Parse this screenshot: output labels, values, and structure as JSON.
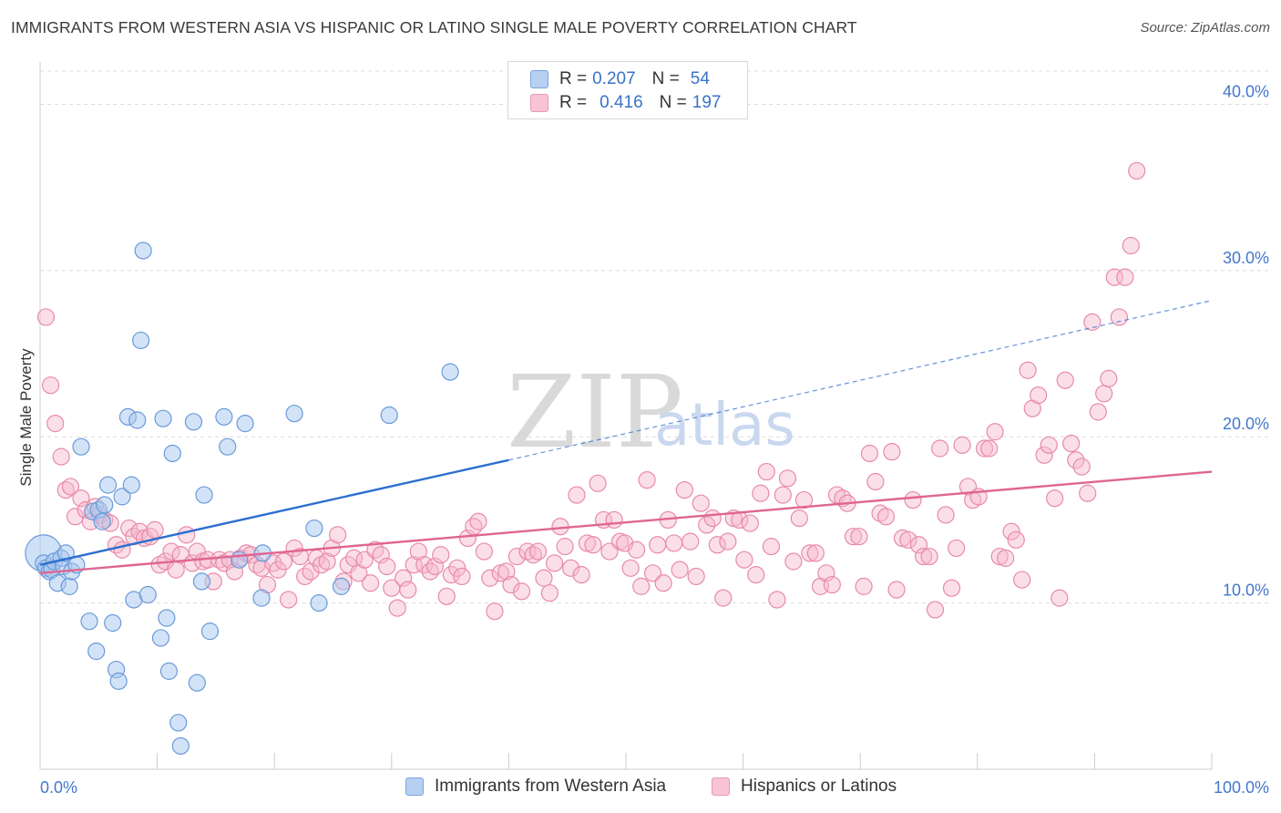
{
  "header": {
    "title": "IMMIGRANTS FROM WESTERN ASIA VS HISPANIC OR LATINO SINGLE MALE POVERTY CORRELATION CHART",
    "source": "Source: ZipAtlas.com"
  },
  "watermark": {
    "zip": "ZIP",
    "atlas": "atlas"
  },
  "legend": {
    "series1": {
      "r_label": "R =",
      "r_value": "0.207",
      "n_label": "N =",
      "n_value": "54"
    },
    "series2": {
      "r_label": "R =",
      "r_value": "0.416",
      "n_label": "N =",
      "n_value": "197"
    }
  },
  "colors": {
    "blue_fill": "#a8c8f0",
    "blue_stroke": "#6a9ad8",
    "blue_line": "#2d6fcf",
    "pink_fill": "#f6b8cc",
    "pink_stroke": "#e88aa8",
    "pink_line": "#e06592",
    "grid": "#dddddd",
    "tick_text": "#4477cc"
  },
  "chart_data": {
    "type": "scatter",
    "title": "IMMIGRANTS FROM WESTERN ASIA VS HISPANIC OR LATINO SINGLE MALE POVERTY CORRELATION CHART",
    "xlabel": "",
    "ylabel": "Single Male Poverty",
    "xlim": [
      0,
      100
    ],
    "ylim": [
      0,
      40
    ],
    "x_tick_labels": [
      "0.0%",
      "100.0%"
    ],
    "y_ticks": [
      10,
      20,
      30,
      40
    ],
    "y_tick_labels": [
      "10.0%",
      "20.0%",
      "30.0%",
      "40.0%"
    ],
    "grid": true,
    "legend_position": "top-center",
    "series": [
      {
        "name": "Immigrants from Western Asia",
        "r": 0.207,
        "n": 54,
        "trend": {
          "x0": 0,
          "y0": 12.3,
          "x1": 40,
          "y1": 18.6,
          "dashed_to": {
            "x": 100,
            "y": 28.2
          }
        },
        "points": [
          [
            0.3,
            12.4
          ],
          [
            0.5,
            12.1
          ],
          [
            0.8,
            11.9
          ],
          [
            1.0,
            12.0
          ],
          [
            1.2,
            12.5
          ],
          [
            1.5,
            11.2
          ],
          [
            1.8,
            12.7
          ],
          [
            2.0,
            12.2
          ],
          [
            2.2,
            13.0
          ],
          [
            2.5,
            11.0
          ],
          [
            2.7,
            11.9
          ],
          [
            3.1,
            12.3
          ],
          [
            3.5,
            19.4
          ],
          [
            4.2,
            8.9
          ],
          [
            4.5,
            15.5
          ],
          [
            4.8,
            7.1
          ],
          [
            5.0,
            15.6
          ],
          [
            5.3,
            14.9
          ],
          [
            5.5,
            15.9
          ],
          [
            5.8,
            17.1
          ],
          [
            6.2,
            8.8
          ],
          [
            6.5,
            6.0
          ],
          [
            6.7,
            5.3
          ],
          [
            7.0,
            16.4
          ],
          [
            7.5,
            21.2
          ],
          [
            7.8,
            17.1
          ],
          [
            8.0,
            10.2
          ],
          [
            8.3,
            21.0
          ],
          [
            8.6,
            25.8
          ],
          [
            8.8,
            31.2
          ],
          [
            9.2,
            10.5
          ],
          [
            10.3,
            7.9
          ],
          [
            10.5,
            21.1
          ],
          [
            10.8,
            9.1
          ],
          [
            11.0,
            5.9
          ],
          [
            11.3,
            19.0
          ],
          [
            11.8,
            2.8
          ],
          [
            12.0,
            1.4
          ],
          [
            13.1,
            20.9
          ],
          [
            13.4,
            5.2
          ],
          [
            13.8,
            11.3
          ],
          [
            14.0,
            16.5
          ],
          [
            14.5,
            8.3
          ],
          [
            15.7,
            21.2
          ],
          [
            16.0,
            19.4
          ],
          [
            17.0,
            12.6
          ],
          [
            17.5,
            20.8
          ],
          [
            18.9,
            10.3
          ],
          [
            19.0,
            13.0
          ],
          [
            21.7,
            21.4
          ],
          [
            23.4,
            14.5
          ],
          [
            23.8,
            10.0
          ],
          [
            25.7,
            11.0
          ],
          [
            29.8,
            21.3
          ],
          [
            35.0,
            23.9
          ]
        ]
      },
      {
        "name": "Hispanics or Latinos",
        "r": 0.416,
        "n": 197,
        "trend": {
          "x0": 0,
          "y0": 11.8,
          "x1": 100,
          "y1": 17.9
        },
        "points": [
          [
            0.5,
            27.2
          ],
          [
            0.9,
            23.1
          ],
          [
            1.3,
            20.8
          ],
          [
            1.8,
            18.8
          ],
          [
            2.2,
            16.8
          ],
          [
            2.6,
            17.0
          ],
          [
            3.0,
            15.2
          ],
          [
            3.5,
            16.3
          ],
          [
            3.9,
            15.6
          ],
          [
            4.3,
            14.9
          ],
          [
            4.7,
            15.8
          ],
          [
            5.1,
            15.3
          ],
          [
            5.5,
            15.0
          ],
          [
            6.0,
            14.8
          ],
          [
            6.5,
            13.5
          ],
          [
            7.0,
            13.2
          ],
          [
            7.6,
            14.5
          ],
          [
            8.0,
            14.0
          ],
          [
            8.5,
            14.3
          ],
          [
            8.9,
            13.9
          ],
          [
            9.4,
            14.0
          ],
          [
            9.8,
            14.4
          ],
          [
            10.2,
            12.3
          ],
          [
            10.7,
            12.5
          ],
          [
            11.2,
            13.1
          ],
          [
            11.6,
            12.0
          ],
          [
            12.0,
            12.9
          ],
          [
            12.5,
            14.1
          ],
          [
            13.0,
            12.4
          ],
          [
            13.4,
            13.1
          ],
          [
            13.9,
            12.5
          ],
          [
            14.3,
            12.6
          ],
          [
            14.8,
            11.3
          ],
          [
            15.3,
            12.6
          ],
          [
            15.7,
            12.4
          ],
          [
            16.2,
            12.6
          ],
          [
            16.6,
            11.9
          ],
          [
            17.1,
            12.7
          ],
          [
            17.6,
            13.0
          ],
          [
            18.0,
            12.9
          ],
          [
            18.5,
            12.3
          ],
          [
            18.9,
            12.1
          ],
          [
            19.4,
            11.1
          ],
          [
            19.9,
            12.4
          ],
          [
            20.3,
            12.0
          ],
          [
            20.8,
            12.5
          ],
          [
            21.2,
            10.2
          ],
          [
            21.7,
            13.3
          ],
          [
            22.2,
            12.8
          ],
          [
            22.6,
            11.6
          ],
          [
            23.1,
            11.9
          ],
          [
            23.6,
            12.7
          ],
          [
            24.0,
            12.3
          ],
          [
            24.5,
            12.5
          ],
          [
            24.9,
            13.3
          ],
          [
            25.4,
            14.1
          ],
          [
            25.9,
            11.3
          ],
          [
            26.3,
            12.3
          ],
          [
            26.8,
            12.7
          ],
          [
            27.2,
            11.8
          ],
          [
            27.7,
            12.6
          ],
          [
            28.2,
            11.2
          ],
          [
            28.6,
            13.2
          ],
          [
            29.1,
            12.9
          ],
          [
            29.6,
            12.2
          ],
          [
            30.0,
            10.9
          ],
          [
            30.5,
            9.7
          ],
          [
            31.0,
            11.5
          ],
          [
            31.4,
            10.8
          ],
          [
            31.9,
            12.3
          ],
          [
            32.3,
            13.1
          ],
          [
            32.8,
            12.3
          ],
          [
            33.3,
            11.9
          ],
          [
            33.7,
            12.2
          ],
          [
            34.2,
            12.9
          ],
          [
            34.7,
            10.4
          ],
          [
            35.1,
            11.7
          ],
          [
            35.6,
            12.1
          ],
          [
            36.0,
            11.6
          ],
          [
            36.5,
            13.9
          ],
          [
            37.0,
            14.6
          ],
          [
            37.4,
            14.9
          ],
          [
            37.9,
            13.1
          ],
          [
            38.4,
            11.5
          ],
          [
            38.8,
            9.5
          ],
          [
            39.3,
            11.8
          ],
          [
            39.8,
            11.9
          ],
          [
            40.2,
            11.1
          ],
          [
            40.7,
            12.8
          ],
          [
            41.1,
            10.7
          ],
          [
            41.6,
            13.1
          ],
          [
            42.1,
            12.9
          ],
          [
            42.5,
            13.1
          ],
          [
            43.0,
            11.5
          ],
          [
            43.5,
            10.6
          ],
          [
            43.9,
            12.4
          ],
          [
            44.4,
            14.6
          ],
          [
            44.8,
            13.4
          ],
          [
            45.3,
            12.1
          ],
          [
            45.8,
            16.5
          ],
          [
            46.2,
            11.7
          ],
          [
            46.7,
            13.6
          ],
          [
            47.2,
            13.5
          ],
          [
            47.6,
            17.2
          ],
          [
            48.1,
            15.0
          ],
          [
            48.6,
            13.1
          ],
          [
            49.0,
            15.0
          ],
          [
            49.5,
            13.7
          ],
          [
            49.9,
            13.6
          ],
          [
            50.4,
            12.1
          ],
          [
            50.9,
            13.2
          ],
          [
            51.3,
            11.0
          ],
          [
            51.8,
            17.4
          ],
          [
            52.3,
            11.8
          ],
          [
            52.7,
            13.5
          ],
          [
            53.2,
            11.2
          ],
          [
            53.6,
            15.0
          ],
          [
            54.1,
            13.6
          ],
          [
            54.6,
            12.0
          ],
          [
            55.0,
            16.8
          ],
          [
            55.5,
            13.7
          ],
          [
            56.0,
            11.6
          ],
          [
            56.4,
            16.0
          ],
          [
            56.9,
            14.7
          ],
          [
            57.4,
            15.1
          ],
          [
            57.8,
            13.5
          ],
          [
            58.3,
            10.3
          ],
          [
            58.7,
            13.7
          ],
          [
            59.2,
            15.1
          ],
          [
            59.7,
            15.0
          ],
          [
            60.1,
            12.6
          ],
          [
            60.6,
            14.8
          ],
          [
            61.1,
            11.7
          ],
          [
            61.5,
            16.6
          ],
          [
            62.0,
            17.9
          ],
          [
            62.4,
            13.4
          ],
          [
            62.9,
            10.2
          ],
          [
            63.4,
            16.5
          ],
          [
            63.8,
            17.5
          ],
          [
            64.3,
            12.5
          ],
          [
            64.8,
            15.1
          ],
          [
            65.2,
            16.2
          ],
          [
            65.7,
            13.0
          ],
          [
            66.2,
            13.0
          ],
          [
            66.6,
            11.0
          ],
          [
            67.1,
            11.8
          ],
          [
            67.6,
            11.1
          ],
          [
            68.0,
            16.5
          ],
          [
            68.5,
            16.3
          ],
          [
            68.9,
            16.0
          ],
          [
            69.4,
            14.0
          ],
          [
            69.9,
            14.0
          ],
          [
            70.3,
            11.0
          ],
          [
            70.8,
            19.0
          ],
          [
            71.3,
            17.3
          ],
          [
            71.7,
            15.4
          ],
          [
            72.2,
            15.2
          ],
          [
            72.7,
            19.1
          ],
          [
            73.1,
            10.8
          ],
          [
            73.6,
            13.9
          ],
          [
            74.1,
            13.8
          ],
          [
            74.5,
            16.2
          ],
          [
            75.0,
            13.5
          ],
          [
            75.4,
            12.8
          ],
          [
            75.9,
            12.8
          ],
          [
            76.4,
            9.6
          ],
          [
            76.8,
            19.3
          ],
          [
            77.3,
            15.3
          ],
          [
            77.8,
            10.9
          ],
          [
            78.2,
            13.3
          ],
          [
            78.7,
            19.5
          ],
          [
            79.2,
            17.0
          ],
          [
            79.6,
            16.2
          ],
          [
            80.1,
            16.4
          ],
          [
            80.6,
            19.3
          ],
          [
            81.0,
            19.3
          ],
          [
            81.5,
            20.3
          ],
          [
            81.9,
            12.8
          ],
          [
            82.4,
            12.7
          ],
          [
            82.9,
            14.3
          ],
          [
            83.3,
            13.8
          ],
          [
            83.8,
            11.4
          ],
          [
            84.3,
            24.0
          ],
          [
            84.7,
            21.7
          ],
          [
            85.2,
            22.5
          ],
          [
            85.7,
            18.9
          ],
          [
            86.1,
            19.5
          ],
          [
            86.6,
            16.3
          ],
          [
            87.0,
            10.3
          ],
          [
            87.5,
            23.4
          ],
          [
            88.0,
            19.6
          ],
          [
            88.4,
            18.6
          ],
          [
            88.9,
            18.2
          ],
          [
            89.4,
            16.6
          ],
          [
            89.8,
            26.9
          ],
          [
            90.3,
            21.5
          ],
          [
            90.8,
            22.6
          ],
          [
            91.2,
            23.5
          ],
          [
            91.7,
            29.6
          ],
          [
            92.1,
            27.2
          ],
          [
            92.6,
            29.6
          ],
          [
            93.1,
            31.5
          ],
          [
            93.6,
            36.0
          ]
        ]
      }
    ]
  },
  "bottom_legend": {
    "series1_label": "Immigrants from Western Asia",
    "series2_label": "Hispanics or Latinos"
  }
}
